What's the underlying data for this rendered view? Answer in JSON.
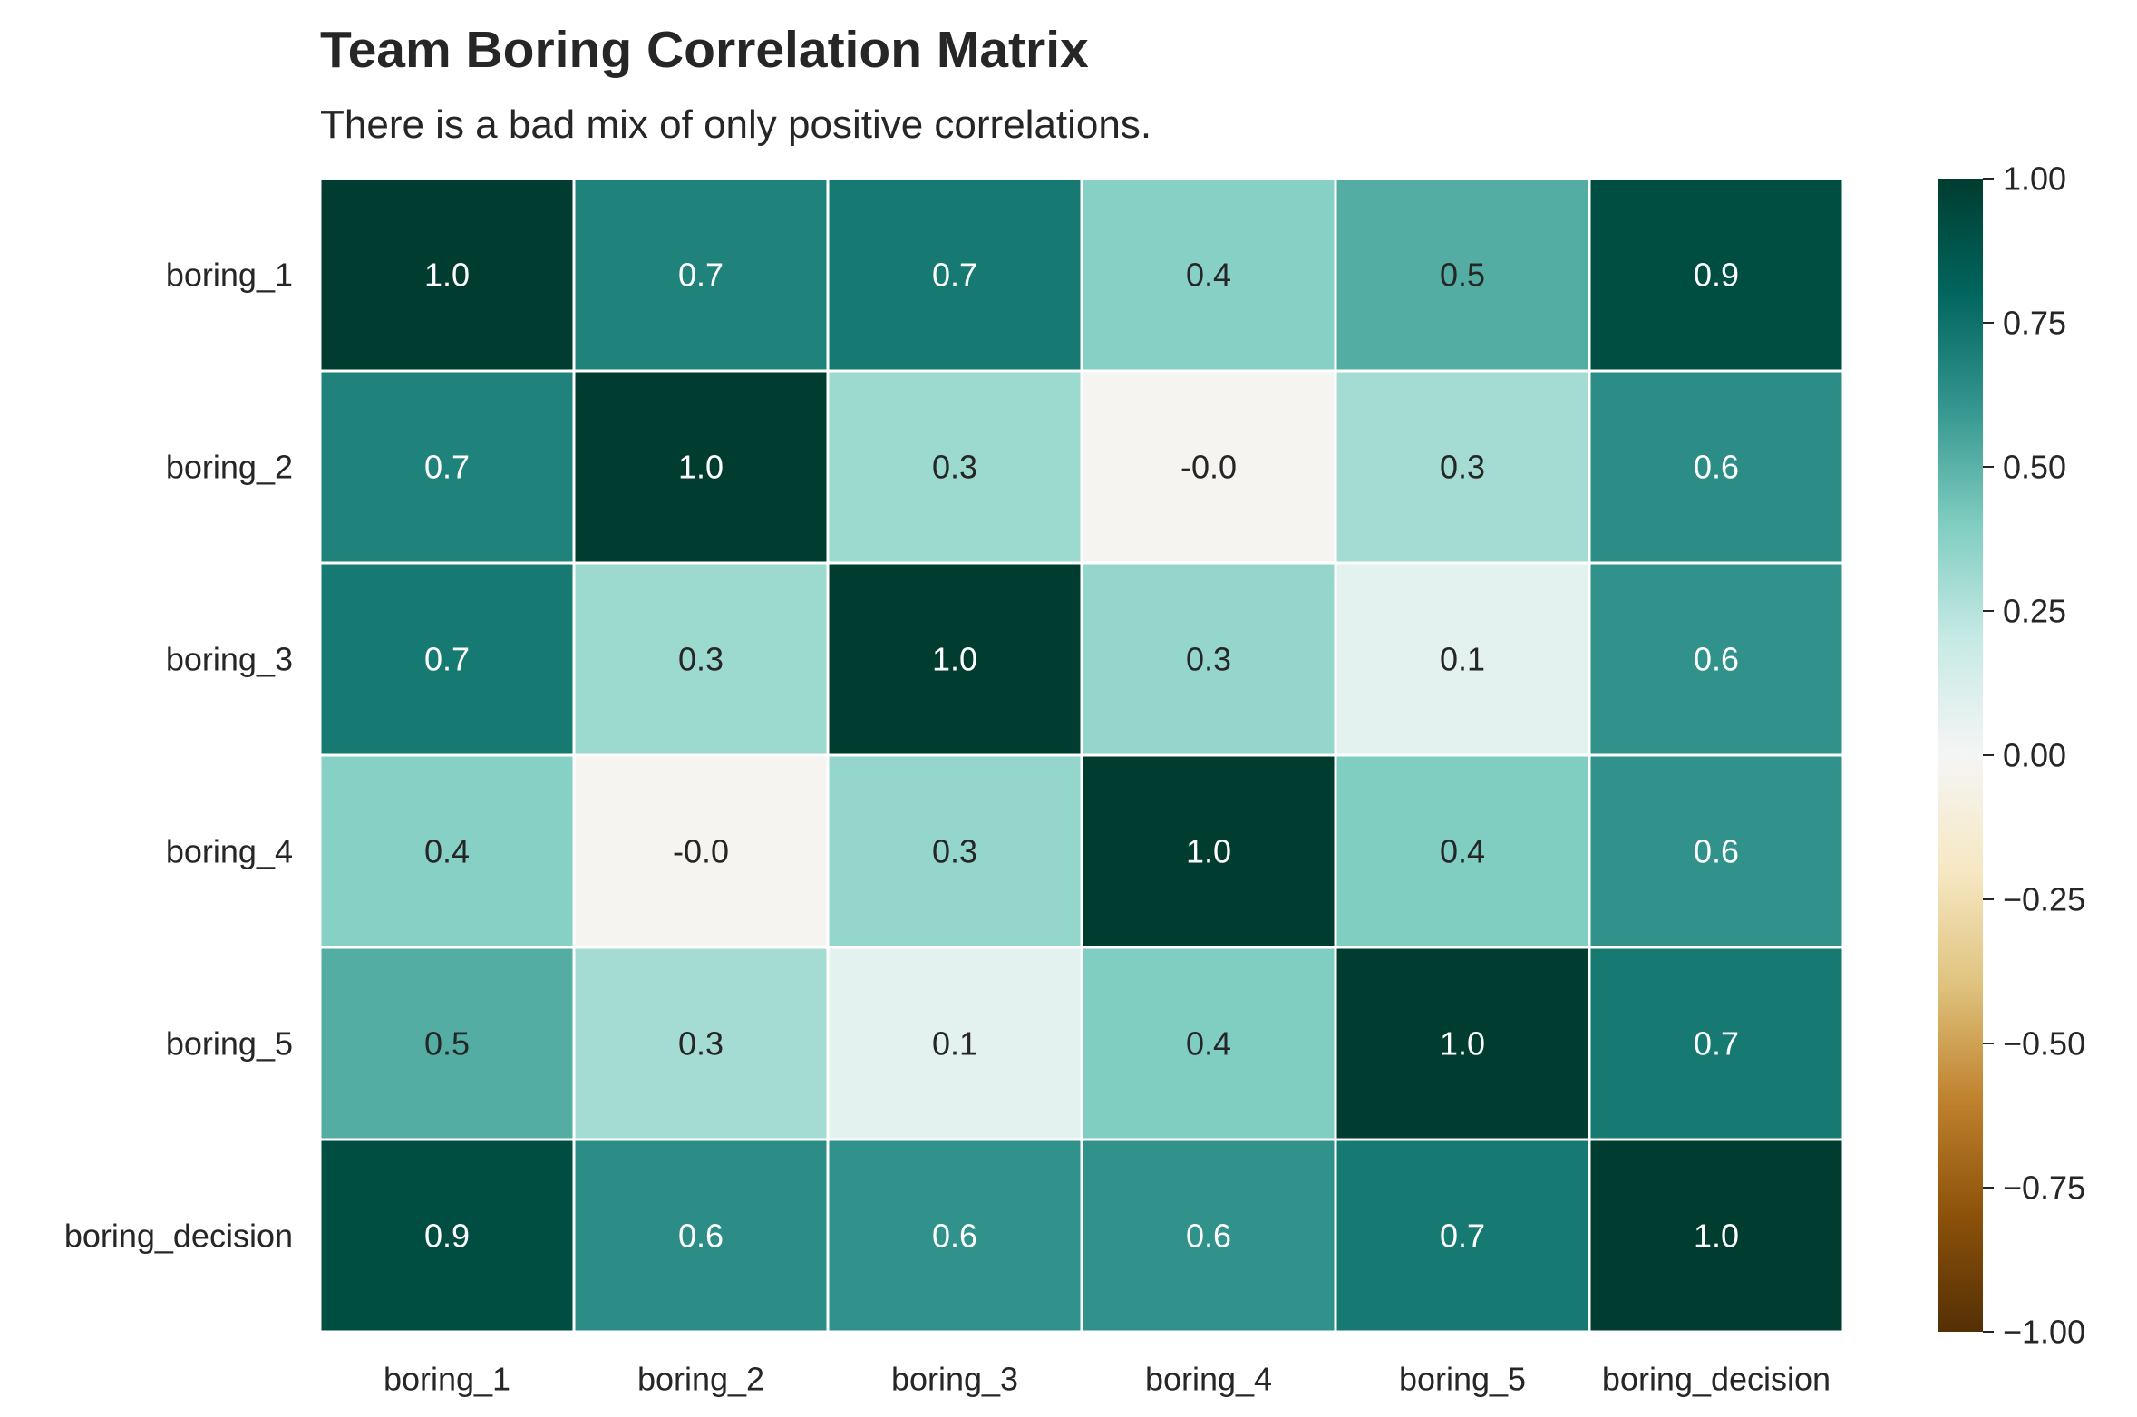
{
  "chart_data": {
    "type": "heatmap",
    "title": "Team Boring Correlation Matrix",
    "subtitle": "There is a bad mix of only positive correlations.",
    "rows": [
      "boring_1",
      "boring_2",
      "boring_3",
      "boring_4",
      "boring_5",
      "boring_decision"
    ],
    "columns": [
      "boring_1",
      "boring_2",
      "boring_3",
      "boring_4",
      "boring_5",
      "boring_decision"
    ],
    "values": [
      [
        1.0,
        0.68,
        0.72,
        0.38,
        0.52,
        0.92
      ],
      [
        0.68,
        1.0,
        0.32,
        -0.02,
        0.3,
        0.64
      ],
      [
        0.72,
        0.32,
        1.0,
        0.34,
        0.08,
        0.62
      ],
      [
        0.38,
        -0.02,
        0.34,
        1.0,
        0.4,
        0.62
      ],
      [
        0.52,
        0.3,
        0.08,
        0.4,
        1.0,
        0.72
      ],
      [
        0.92,
        0.64,
        0.62,
        0.62,
        0.72,
        1.0
      ]
    ],
    "labels": [
      [
        "1.0",
        "0.7",
        "0.7",
        "0.4",
        "0.5",
        "0.9"
      ],
      [
        "0.7",
        "1.0",
        "0.3",
        "-0.0",
        "0.3",
        "0.6"
      ],
      [
        "0.7",
        "0.3",
        "1.0",
        "0.3",
        "0.1",
        "0.6"
      ],
      [
        "0.4",
        "-0.0",
        "0.3",
        "1.0",
        "0.4",
        "0.6"
      ],
      [
        "0.5",
        "0.3",
        "0.1",
        "0.4",
        "1.0",
        "0.7"
      ],
      [
        "0.9",
        "0.6",
        "0.6",
        "0.6",
        "0.7",
        "1.0"
      ]
    ],
    "colorbar": {
      "min": -1.0,
      "max": 1.0,
      "ticks": [
        1.0,
        0.75,
        0.5,
        0.25,
        0.0,
        -0.25,
        -0.5,
        -0.75,
        -1.0
      ],
      "tick_labels": [
        "1.00",
        "0.75",
        "0.50",
        "0.25",
        "0.00",
        "−0.25",
        "−0.50",
        "−0.75",
        "−1.00"
      ],
      "colormap": "BrBG",
      "placement": "right"
    },
    "colormap_stops": [
      "#543005",
      "#8c510a",
      "#bf812d",
      "#dfc27d",
      "#f6e8c3",
      "#f5f5f5",
      "#c7eae5",
      "#80cdc1",
      "#35978f",
      "#01665e",
      "#003c30"
    ],
    "grid_line_color": "#ffffff"
  }
}
